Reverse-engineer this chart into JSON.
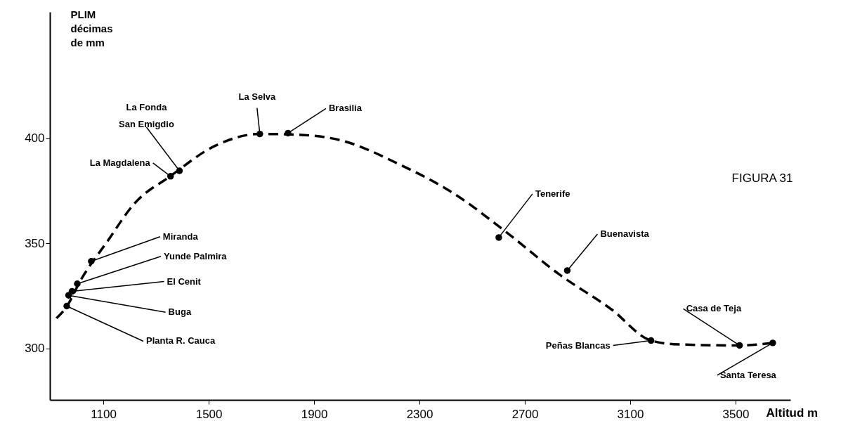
{
  "chart_data": {
    "type": "scatter",
    "title": "FIGURA 31",
    "xlabel": "Altitud m",
    "ylabel": "PLIM\ndécimas\nde mm",
    "xlim": [
      897,
      3708
    ],
    "ylim": [
      275.6,
      460
    ],
    "xticks": [
      1100,
      1500,
      1900,
      2300,
      2700,
      3100,
      3500
    ],
    "yticks": [
      300,
      350,
      400
    ],
    "grid": false,
    "series": [
      {
        "type": "line",
        "line_style": "dashed",
        "marker": "none",
        "color": "#000000",
        "x": [
          922,
          961,
          1013,
          1115,
          1217,
          1355,
          1523,
          1694,
          1828,
          2001,
          2228,
          2428,
          2628,
          2828,
          3028,
          3179,
          3281,
          3515,
          3641
        ],
        "values": [
          314.4,
          320,
          332.3,
          350.9,
          368.8,
          382,
          396.3,
          402,
          401.7,
          399,
          387.3,
          373.9,
          355.5,
          335.5,
          318.7,
          303.8,
          302,
          301.5,
          302.7
        ]
      },
      {
        "type": "scatter",
        "marker": "circle",
        "color": "#000000",
        "x": [
          961,
          968,
          981,
          1001,
          1054,
          1355,
          1389,
          1694,
          1801,
          2601,
          2861,
          3179,
          3515,
          3641
        ],
        "values": [
          320.2,
          325.3,
          327.2,
          330.8,
          341.5,
          381.9,
          384.5,
          402,
          402.4,
          352.8,
          337.1,
          303.8,
          301.5,
          302.7
        ]
      }
    ],
    "annotations": [
      {
        "text": "Planta  R. Cauca",
        "x": 961,
        "y": 320.2
      },
      {
        "text": "Buga",
        "x": 968,
        "y": 325.3
      },
      {
        "text": "El Cenit",
        "x": 981,
        "y": 327.2
      },
      {
        "text": "Yunde Palmira",
        "x": 1001,
        "y": 330.8
      },
      {
        "text": "Miranda",
        "x": 1054,
        "y": 341.5
      },
      {
        "text": "La Magdalena",
        "x": 1355,
        "y": 381.9
      },
      {
        "text": "La Fonda\nSan Emigdio",
        "x": 1389,
        "y": 384.5
      },
      {
        "text": "La Selva",
        "x": 1694,
        "y": 402
      },
      {
        "text": "Brasilia",
        "x": 1801,
        "y": 402.4
      },
      {
        "text": "Tenerife",
        "x": 2601,
        "y": 352.8
      },
      {
        "text": "Buenavista",
        "x": 2861,
        "y": 337.1
      },
      {
        "text": "Peñas Blancas",
        "x": 3179,
        "y": 303.8
      },
      {
        "text": "Casa de Teja",
        "x": 3515,
        "y": 301.5
      },
      {
        "text": "Santa Teresa",
        "x": 3641,
        "y": 302.7
      }
    ]
  }
}
